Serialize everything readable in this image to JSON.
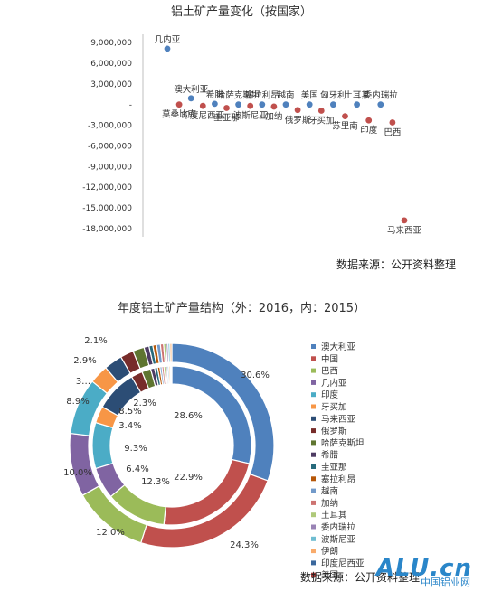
{
  "chart_data": [
    {
      "type": "scatter",
      "title": "铝土矿产量变化（按国家）",
      "ylim": [
        -18000000,
        9000000
      ],
      "yticks": [
        9000000,
        6000000,
        3000000,
        0,
        -3000000,
        -6000000,
        -9000000,
        -12000000,
        -15000000,
        -18000000
      ],
      "ytick_labels": [
        "9,000,000",
        "6,000,000",
        "3,000,000",
        "-",
        "-3,000,000",
        "-6,000,000",
        "-9,000,000",
        "-12,000,000",
        "-15,000,000",
        "-18,000,000"
      ],
      "points": [
        {
          "label": "几内亚",
          "y": 8100000,
          "color": "#4f81bd"
        },
        {
          "label": "莫桑比克",
          "y": 0,
          "color": "#c0504d"
        },
        {
          "label": "澳大利亚",
          "y": 900000,
          "color": "#4f81bd"
        },
        {
          "label": "印度尼西亚",
          "y": -200000,
          "color": "#c0504d"
        },
        {
          "label": "希腊",
          "y": 100000,
          "color": "#4f81bd"
        },
        {
          "label": "圭亚那",
          "y": -500000,
          "color": "#c0504d"
        },
        {
          "label": "哈萨克斯坦",
          "y": 0,
          "color": "#4f81bd"
        },
        {
          "label": "波斯尼亚",
          "y": -200000,
          "color": "#c0504d"
        },
        {
          "label": "塞拉利昂",
          "y": 0,
          "color": "#4f81bd"
        },
        {
          "label": "加纳",
          "y": -300000,
          "color": "#c0504d"
        },
        {
          "label": "越南",
          "y": 0,
          "color": "#4f81bd"
        },
        {
          "label": "俄罗斯",
          "y": -800000,
          "color": "#c0504d"
        },
        {
          "label": "美国",
          "y": 0,
          "color": "#4f81bd"
        },
        {
          "label": "牙买加",
          "y": -900000,
          "color": "#c0504d"
        },
        {
          "label": "匈牙利",
          "y": 0,
          "color": "#4f81bd"
        },
        {
          "label": "苏里南",
          "y": -1700000,
          "color": "#c0504d"
        },
        {
          "label": "土耳其",
          "y": 0,
          "color": "#4f81bd"
        },
        {
          "label": "印度",
          "y": -2300000,
          "color": "#c0504d"
        },
        {
          "label": "委内瑞拉",
          "y": 0,
          "color": "#4f81bd"
        },
        {
          "label": "巴西",
          "y": -2600000,
          "color": "#c0504d"
        },
        {
          "label": "马来西亚",
          "y": -16800000,
          "color": "#c0504d"
        }
      ],
      "source": "数据来源：公开资料整理"
    },
    {
      "type": "pie",
      "title": "年度铝土矿产量结构（外：2016，内：2015）",
      "categories": [
        "澳大利亚",
        "中国",
        "巴西",
        "几内亚",
        "印度",
        "牙买加",
        "马来西亚",
        "俄罗斯",
        "哈萨克斯坦",
        "希腊",
        "圭亚那",
        "塞拉利昂",
        "越南",
        "加纳",
        "土耳其",
        "委内瑞拉",
        "波斯尼亚",
        "伊朗",
        "印度尼西亚",
        "美国"
      ],
      "colors": [
        "#4f81bd",
        "#c0504d",
        "#9bbb59",
        "#8064a2",
        "#4bacc6",
        "#f79646",
        "#2c4d75",
        "#772c2a",
        "#5f7530",
        "#4d3b62",
        "#276a7c",
        "#b65708",
        "#729aca",
        "#cd7371",
        "#afc97a",
        "#9983b5",
        "#6fbdd1",
        "#f9ab6b",
        "#3a679c",
        "#9e3b38"
      ],
      "series": [
        {
          "name": "外：2016",
          "values": [
            30.6,
            24.3,
            12.0,
            10.0,
            8.9,
            3.0,
            2.9,
            2.1,
            1.8,
            0.8,
            0.6,
            0.6,
            0.6,
            0.5,
            0.4,
            0.3,
            0.3,
            0.3,
            0.0,
            0.0
          ]
        },
        {
          "name": "内：2015",
          "values": [
            28.6,
            22.9,
            12.3,
            6.4,
            9.3,
            3.4,
            8.5,
            2.3,
            1.8,
            0.8,
            0.6,
            0.5,
            0.4,
            0.4,
            0.4,
            0.3,
            0.3,
            0.3,
            0.2,
            0.1
          ]
        }
      ],
      "outer_labels": [
        "30.6%",
        "24.3%",
        "12.0%",
        "10.0%",
        "8.9%",
        "3…",
        "2.9%",
        "2.1%"
      ],
      "inner_labels": [
        "28.6%",
        "22.9%",
        "12.3%",
        "6.4%",
        "9.3%",
        "3.4%",
        "8.5%",
        "2.3%"
      ],
      "legend_position": "right",
      "source": "数据来源：公开资料整理"
    }
  ],
  "watermark": {
    "text": "ALU.cn",
    "sub": "中国铝业网"
  }
}
